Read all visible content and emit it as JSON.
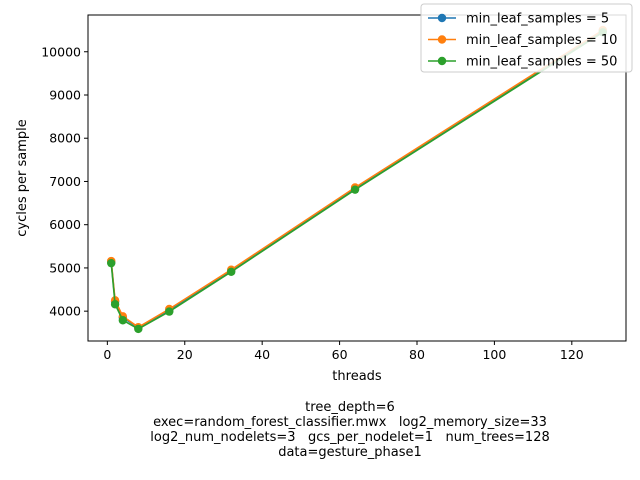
{
  "chart_data": {
    "type": "line",
    "xlabel": "threads",
    "ylabel": "cycles per sample",
    "xlim": [
      -5,
      134
    ],
    "ylim": [
      3310,
      10850
    ],
    "xticks": [
      0,
      20,
      40,
      60,
      80,
      100,
      120
    ],
    "yticks": [
      4000,
      5000,
      6000,
      7000,
      8000,
      9000,
      10000
    ],
    "grid": false,
    "legend_position": "top-right",
    "x": [
      1,
      2,
      4,
      8,
      16,
      32,
      64,
      128
    ],
    "series": [
      {
        "name": "min_leaf_samples = 5",
        "color": "#1f77b4",
        "values": [
          5140,
          4220,
          3850,
          3620,
          4030,
          4940,
          6840,
          10480
        ]
      },
      {
        "name": "min_leaf_samples = 10",
        "color": "#ff7f0e",
        "values": [
          5160,
          4250,
          3880,
          3630,
          4050,
          4960,
          6860,
          10500
        ]
      },
      {
        "name": "min_leaf_samples = 50",
        "color": "#2ca02c",
        "values": [
          5110,
          4160,
          3790,
          3590,
          3990,
          4910,
          6810,
          10450
        ]
      }
    ],
    "caption_lines": [
      "tree_depth=6",
      "exec=random_forest_classifier.mwx   log2_memory_size=33",
      "log2_num_nodelets=3   gcs_per_nodelet=1   num_trees=128",
      "data=gesture_phase1"
    ]
  }
}
